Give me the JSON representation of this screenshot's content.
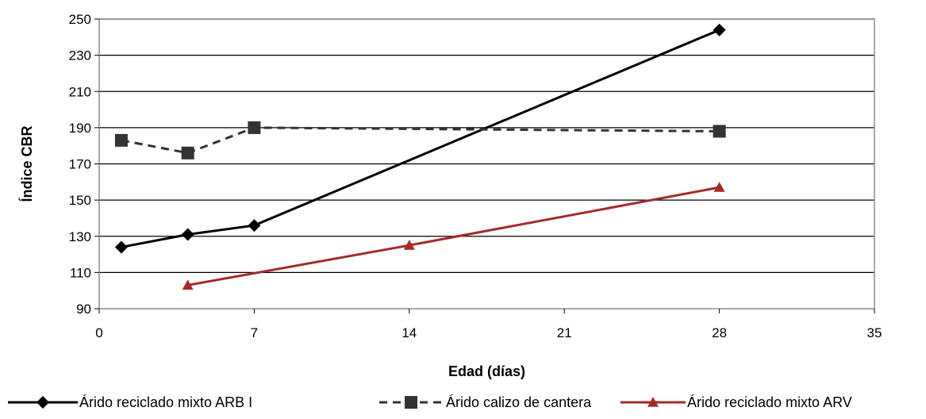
{
  "chart_data": {
    "type": "line",
    "title": "",
    "xlabel": "Edad (días)",
    "ylabel": "Índice CBR",
    "xlim": [
      0,
      35
    ],
    "ylim": [
      90,
      250
    ],
    "xticks": [
      0,
      7,
      14,
      21,
      28,
      35
    ],
    "yticks": [
      90,
      110,
      130,
      150,
      170,
      190,
      210,
      230,
      250
    ],
    "grid": "horizontal",
    "legend_position": "bottom",
    "series": [
      {
        "name": "Árido reciclado mixto ARB I",
        "color": "#000000",
        "marker": "diamond",
        "dash": "solid",
        "points": [
          [
            1,
            124
          ],
          [
            4,
            131
          ],
          [
            7,
            136
          ],
          [
            28,
            244
          ]
        ]
      },
      {
        "name": "Árido calizo de cantera",
        "color": "#333333",
        "marker": "square",
        "dash": "dashed",
        "points": [
          [
            1,
            183
          ],
          [
            4,
            176
          ],
          [
            7,
            190
          ],
          [
            28,
            188
          ]
        ]
      },
      {
        "name": "Árido reciclado mixto ARV",
        "color": "#a52a2a",
        "marker": "triangle",
        "dash": "solid",
        "points": [
          [
            4,
            103
          ],
          [
            14,
            125
          ],
          [
            28,
            157
          ]
        ]
      }
    ]
  }
}
